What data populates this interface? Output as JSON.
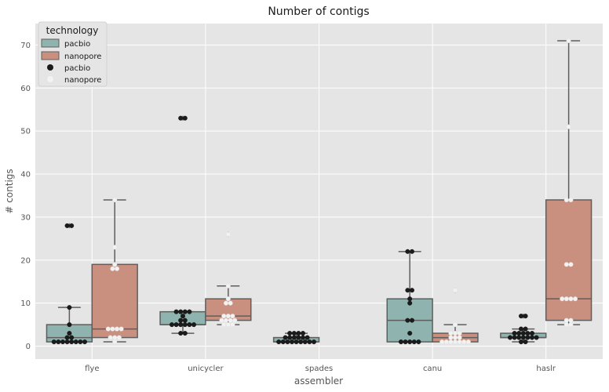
{
  "chart_data": {
    "type": "box",
    "title": "Number of contigs",
    "xlabel": "assembler",
    "ylabel": "# contigs",
    "categories": [
      "flye",
      "unicycler",
      "spades",
      "canu",
      "haslr"
    ],
    "ylim": [
      -3,
      75
    ],
    "yticks": [
      0,
      10,
      20,
      30,
      40,
      50,
      60,
      70
    ],
    "grid": true,
    "legend": {
      "title": "technology",
      "placement": "top-left",
      "entries": [
        {
          "label": "pacbio",
          "kind": "box"
        },
        {
          "label": "nanopore",
          "kind": "box"
        },
        {
          "label": "pacbio",
          "kind": "point"
        },
        {
          "label": "nanopore",
          "kind": "point"
        }
      ]
    },
    "series": [
      {
        "name": "pacbio",
        "box_color": "#8fb3ae",
        "point_color": "#1b1b1b",
        "boxes": [
          {
            "q1": 1,
            "median": 2,
            "q3": 5,
            "whisker_low": 1,
            "whisker_high": 9,
            "outliers": [
              28
            ]
          },
          {
            "q1": 5,
            "median": 5,
            "q3": 8,
            "whisker_low": 3,
            "whisker_high": 8,
            "outliers": [
              53
            ]
          },
          {
            "q1": 1,
            "median": 1,
            "q3": 2,
            "whisker_low": 1,
            "whisker_high": 3,
            "outliers": []
          },
          {
            "q1": 1,
            "median": 6,
            "q3": 11,
            "whisker_low": 1,
            "whisker_high": 22,
            "outliers": []
          },
          {
            "q1": 2,
            "median": 2,
            "q3": 3,
            "whisker_low": 1,
            "whisker_high": 4,
            "outliers": [
              7
            ]
          }
        ],
        "points": [
          [
            1,
            1,
            1,
            1,
            1,
            1,
            1,
            1,
            2,
            2,
            3,
            5,
            9,
            28,
            28
          ],
          [
            3,
            3,
            5,
            5,
            5,
            5,
            5,
            5,
            6,
            6,
            7,
            8,
            8,
            8,
            8,
            53,
            53
          ],
          [
            1,
            1,
            1,
            1,
            1,
            1,
            1,
            1,
            1,
            2,
            2,
            2,
            2,
            2,
            2,
            3,
            3,
            3,
            3
          ],
          [
            1,
            1,
            1,
            1,
            1,
            3,
            6,
            6,
            10,
            11,
            13,
            13,
            22,
            22
          ],
          [
            1,
            1,
            2,
            2,
            2,
            2,
            2,
            2,
            2,
            3,
            3,
            3,
            3,
            3,
            4,
            4,
            7,
            7
          ]
        ]
      },
      {
        "name": "nanopore",
        "box_color": "#c99080",
        "point_color": "#f2f2f2",
        "boxes": [
          {
            "q1": 2,
            "median": 4,
            "q3": 19,
            "whisker_low": 1,
            "whisker_high": 34,
            "outliers": []
          },
          {
            "q1": 6,
            "median": 7,
            "q3": 11,
            "whisker_low": 5,
            "whisker_high": 14,
            "outliers": [
              26
            ]
          },
          null,
          {
            "q1": 1,
            "median": 2,
            "q3": 3,
            "whisker_low": 1,
            "whisker_high": 5,
            "outliers": [
              13
            ]
          },
          {
            "q1": 6,
            "median": 11,
            "q3": 34,
            "whisker_low": 5,
            "whisker_high": 71,
            "outliers": []
          }
        ],
        "points": [
          [
            1,
            2,
            2,
            2,
            4,
            4,
            4,
            4,
            18,
            18,
            19,
            23,
            34
          ],
          [
            5,
            5,
            5,
            6,
            6,
            6,
            6,
            7,
            7,
            7,
            10,
            10,
            11,
            14,
            26
          ],
          [],
          [
            1,
            1,
            1,
            1,
            1,
            1,
            1,
            2,
            2,
            2,
            3,
            3,
            3,
            5,
            13
          ],
          [
            5,
            5,
            6,
            6,
            11,
            11,
            11,
            11,
            19,
            19,
            34,
            34,
            51,
            71
          ]
        ]
      }
    ]
  }
}
